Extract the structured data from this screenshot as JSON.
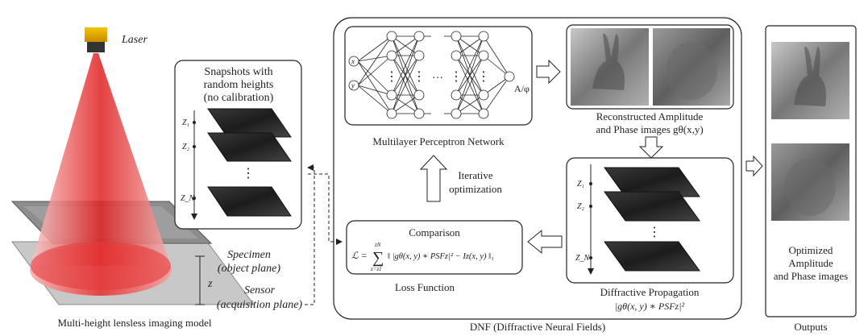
{
  "laser": {
    "label": "Laser"
  },
  "specimen": {
    "label": "Specimen",
    "sublabel": "(object plane)"
  },
  "sensor": {
    "label": "Sensor",
    "sublabel": "(acquisition plane)"
  },
  "height_symbol": "z",
  "imaging_caption": "Multi-height lensless imaging model",
  "snapshots": {
    "title_lines": [
      "Snapshots with",
      "random heights",
      "(no calibration)"
    ],
    "heights": [
      "Z₁",
      "Z₂",
      "Z_N"
    ],
    "ellipsis": "⋮"
  },
  "mlp": {
    "caption": "Multilayer Perceptron Network",
    "input_x": "x",
    "input_y": "y",
    "output_label": "A/φ",
    "ellipsis_h": "…",
    "ellipsis_v": "⋮"
  },
  "reconstructed": {
    "caption_line1": "Reconstructed Amplitude",
    "caption_line2": "and Phase images gθ(x,y)"
  },
  "iterative": {
    "line1": "Iterative",
    "line2": "optimization"
  },
  "comparison": {
    "title": "Comparison",
    "formula_lhs": "ℒ =",
    "formula_sum_top": "zN",
    "formula_sum_bottom": "z=z1",
    "formula_body": "‖ |gθ(x, y) ∗ PSFz|² − Iz(x, y) ‖₁",
    "caption": "Loss Function"
  },
  "diffractive": {
    "heights": [
      "Z₁",
      "Z₂",
      "Z_N"
    ],
    "ellipsis": "⋮",
    "caption": "Diffractive Propagation",
    "formula": "|gθ(x, y) ∗ PSFz|²"
  },
  "dnf_caption": "DNF (Diffractive Neural Fields)",
  "outputs": {
    "lines": [
      "Optimized",
      "Amplitude",
      "and Phase images"
    ],
    "caption": "Outputs"
  }
}
